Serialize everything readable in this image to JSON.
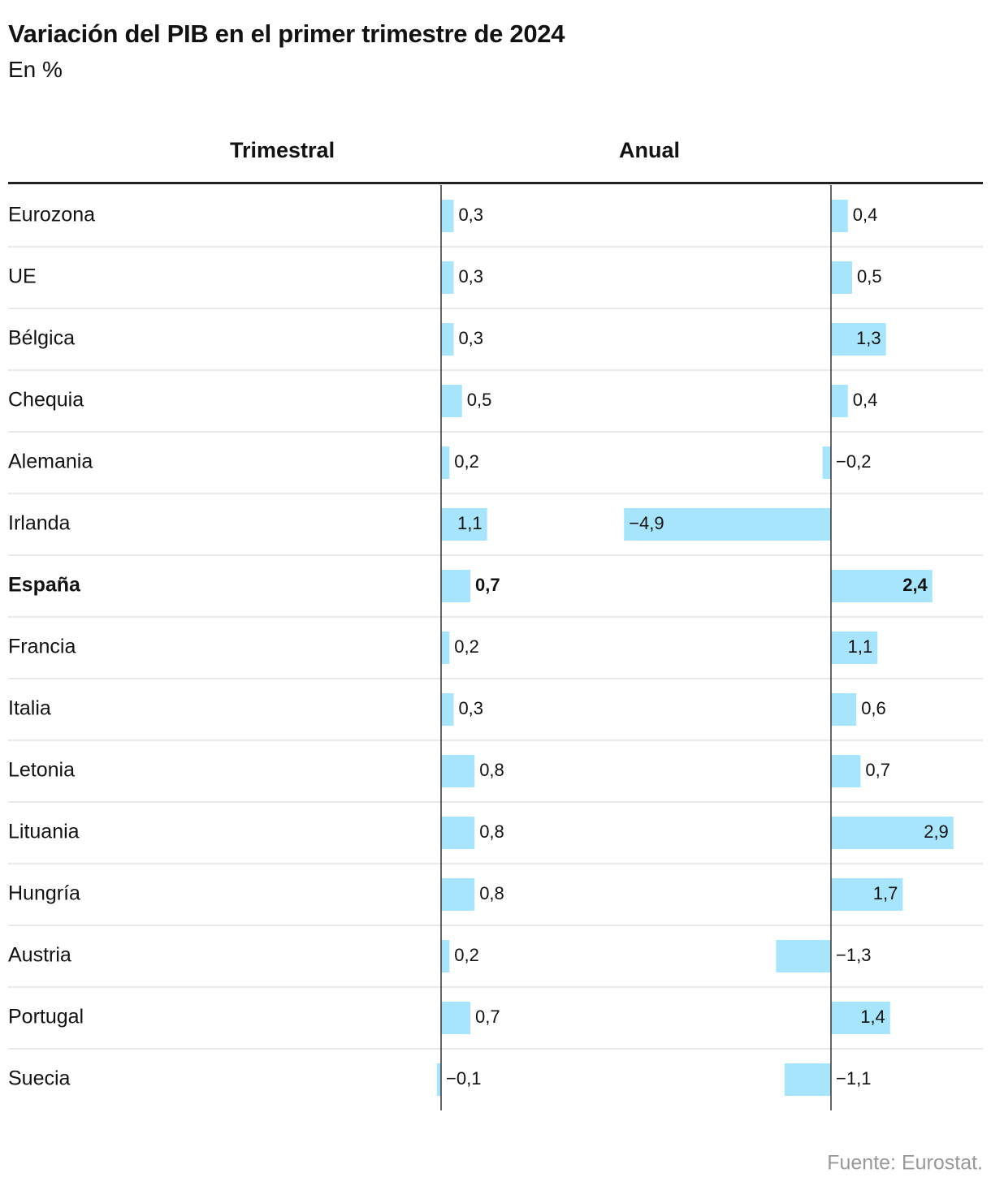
{
  "chart_data": {
    "type": "bar",
    "title": "Variación del PIB en el primer trimestre de 2024",
    "subtitle": "En %",
    "columns": [
      "Trimestral",
      "Anual"
    ],
    "categories": [
      "Eurozona",
      "UE",
      "Bélgica",
      "Chequia",
      "Alemania",
      "Irlanda",
      "España",
      "Francia",
      "Italia",
      "Letonia",
      "Lituania",
      "Hungría",
      "Austria",
      "Portugal",
      "Suecia"
    ],
    "highlight": "España",
    "series": [
      {
        "name": "Trimestral",
        "values": [
          0.3,
          0.3,
          0.3,
          0.5,
          0.2,
          1.1,
          0.7,
          0.2,
          0.3,
          0.8,
          0.8,
          0.8,
          0.2,
          0.7,
          -0.1
        ]
      },
      {
        "name": "Anual",
        "values": [
          0.4,
          0.5,
          1.3,
          0.4,
          -0.2,
          -4.9,
          2.4,
          1.1,
          0.6,
          0.7,
          2.9,
          1.7,
          -1.3,
          1.4,
          -1.1
        ]
      }
    ],
    "labels": {
      "Trimestral": [
        "0,3",
        "0,3",
        "0,3",
        "0,5",
        "0,2",
        "1,1",
        "0,7",
        "0,2",
        "0,3",
        "0,8",
        "0,8",
        "0,8",
        "0,2",
        "0,7",
        "−0,1"
      ],
      "Anual": [
        "0,4",
        "0,5",
        "1,3",
        "0,4",
        "−0,2",
        "−4,9",
        "2,4",
        "1,1",
        "0,6",
        "0,7",
        "2,9",
        "1,7",
        "−1,3",
        "1,4",
        "−1,1"
      ]
    },
    "bar_color": "#a6e5fb",
    "source": "Fuente: Eurostat."
  }
}
